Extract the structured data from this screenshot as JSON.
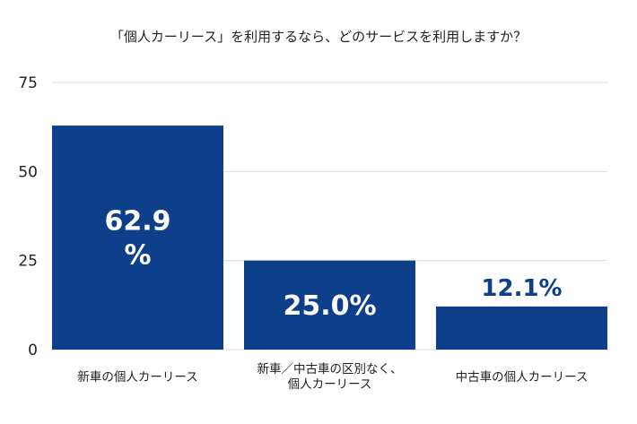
{
  "chart_data": {
    "type": "bar",
    "title": "「個人カーリース」を利用するなら、どのサービスを利用しますか？",
    "categories": [
      "新車の個人カーリース",
      "新車／中古車の区別なく、個人カーリース",
      "中古車の個人カーリース"
    ],
    "category_lines": [
      [
        "新車の個人カーリース"
      ],
      [
        "新車／中古車の区別なく、",
        "個人カーリース"
      ],
      [
        "中古車の個人カーリース"
      ]
    ],
    "values": [
      62.9,
      25.0,
      12.1
    ],
    "data_labels": [
      [
        "62.9",
        "%"
      ],
      [
        "25.0%"
      ],
      [
        "12.1%"
      ]
    ],
    "xlabel": "",
    "ylabel": "",
    "ylim": [
      0,
      75
    ],
    "yticks": [
      0,
      25,
      50,
      75
    ],
    "grid": true,
    "bar_color": "#0e3f8a"
  }
}
